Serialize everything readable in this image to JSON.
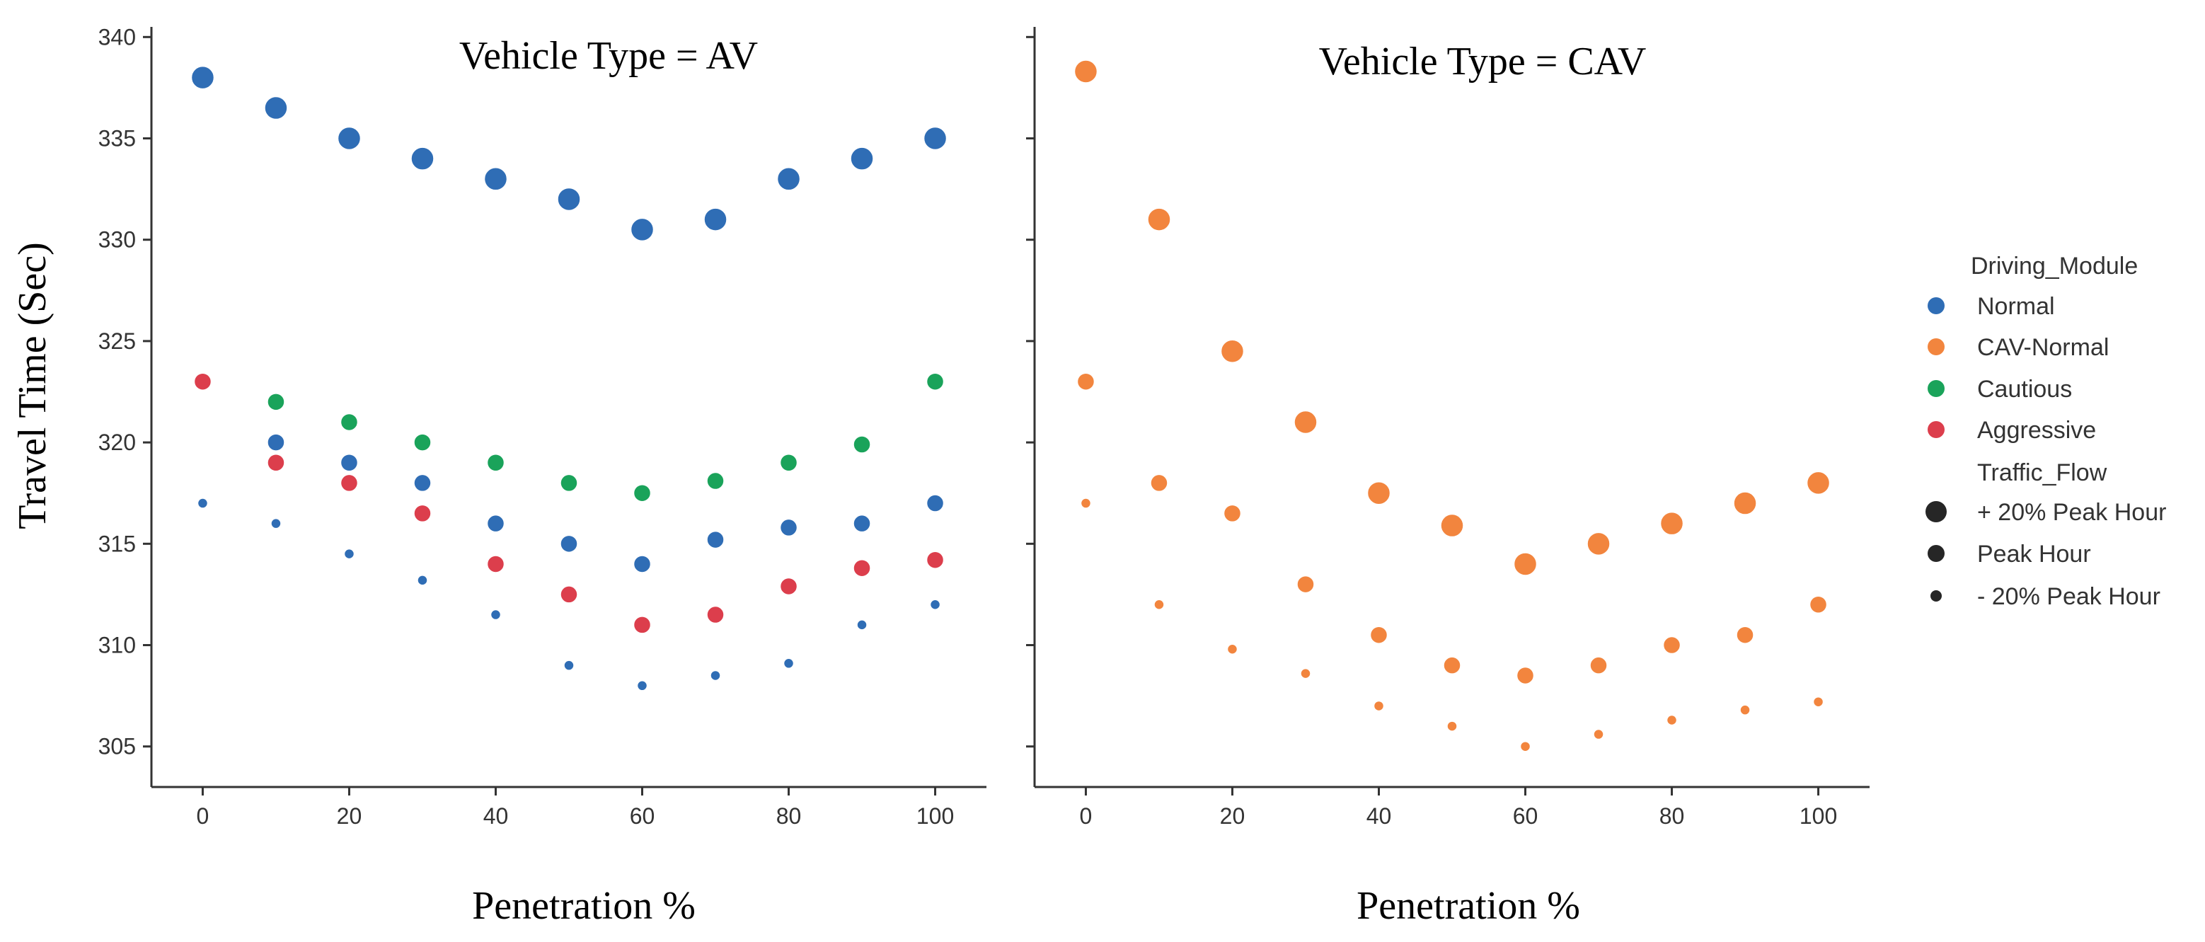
{
  "chart_data": {
    "type": "scatter",
    "ylabel": "Travel Time (Sec)",
    "ylim": [
      303,
      340.5
    ],
    "yticks": [
      305,
      310,
      315,
      320,
      325,
      330,
      335,
      340
    ],
    "xlim": [
      -7,
      107
    ],
    "xticks": [
      0,
      20,
      40,
      60,
      80,
      100
    ],
    "colors": {
      "Normal": "#2f6db5",
      "CAV-Normal": "#f2853e",
      "Cautious": "#1aa35a",
      "Aggressive": "#dc3e4c"
    },
    "size_levels": {
      "+ 20% Peak Hour": 3,
      "Peak Hour": 2,
      "- 20% Peak Hour": 1
    },
    "legend": {
      "hue_title": "Driving_Module",
      "hue_items": [
        "Normal",
        "CAV-Normal",
        "Cautious",
        "Aggressive"
      ],
      "size_title": "Traffic_Flow",
      "size_items": [
        "+ 20% Peak Hour",
        "Peak Hour",
        "- 20% Peak Hour"
      ]
    },
    "panels": [
      {
        "title": "Vehicle Type = AV",
        "xlabel": "Penetration %",
        "series": [
          {
            "module": "Normal",
            "flow": "+ 20% Peak Hour",
            "x": [
              0,
              10,
              20,
              30,
              40,
              50,
              60,
              70,
              80,
              90,
              100
            ],
            "y": [
              338,
              336.5,
              335,
              334,
              333,
              332,
              330.5,
              331,
              333,
              334,
              335
            ]
          },
          {
            "module": "Normal",
            "flow": "Peak Hour",
            "x": [
              10,
              20,
              30,
              40,
              50,
              60,
              70,
              80,
              90,
              100
            ],
            "y": [
              320,
              319,
              318,
              316,
              315,
              314,
              315.2,
              315.8,
              316,
              317
            ]
          },
          {
            "module": "Normal",
            "flow": "- 20% Peak Hour",
            "x": [
              0,
              10,
              20,
              30,
              40,
              50,
              60,
              70,
              80,
              90,
              100
            ],
            "y": [
              317,
              316,
              314.5,
              313.2,
              311.5,
              309,
              308,
              308.5,
              309.1,
              311,
              312
            ]
          },
          {
            "module": "Cautious",
            "flow": "Peak Hour",
            "x": [
              10,
              20,
              30,
              40,
              50,
              60,
              70,
              80,
              90,
              100
            ],
            "y": [
              322,
              321,
              320,
              319,
              318,
              317.5,
              318.1,
              319,
              319.9,
              323
            ]
          },
          {
            "module": "Aggressive",
            "flow": "Peak Hour",
            "x": [
              0,
              10,
              20,
              30,
              40,
              50,
              60,
              70,
              80,
              90,
              100
            ],
            "y": [
              323,
              319,
              318,
              316.5,
              314,
              312.5,
              311,
              311.5,
              312.9,
              313.8,
              314.2
            ]
          }
        ]
      },
      {
        "title": "Vehicle Type = CAV",
        "xlabel": "Penetration %",
        "series": [
          {
            "module": "CAV-Normal",
            "flow": "+ 20% Peak Hour",
            "x": [
              0,
              10,
              20,
              30,
              40,
              50,
              60,
              70,
              80,
              90,
              100
            ],
            "y": [
              338.3,
              331,
              324.5,
              321,
              317.5,
              315.9,
              314,
              315,
              316,
              317,
              318
            ]
          },
          {
            "module": "CAV-Normal",
            "flow": "Peak Hour",
            "x": [
              0,
              10,
              20,
              30,
              40,
              50,
              60,
              70,
              80,
              90,
              100
            ],
            "y": [
              323,
              318,
              316.5,
              313,
              310.5,
              309,
              308.5,
              309,
              310,
              310.5,
              312
            ]
          },
          {
            "module": "CAV-Normal",
            "flow": "- 20% Peak Hour",
            "x": [
              0,
              10,
              20,
              30,
              40,
              50,
              60,
              70,
              80,
              90,
              100
            ],
            "y": [
              317,
              312,
              309.8,
              308.6,
              307,
              306,
              305,
              305.6,
              306.3,
              306.8,
              307.2
            ]
          }
        ]
      }
    ]
  }
}
